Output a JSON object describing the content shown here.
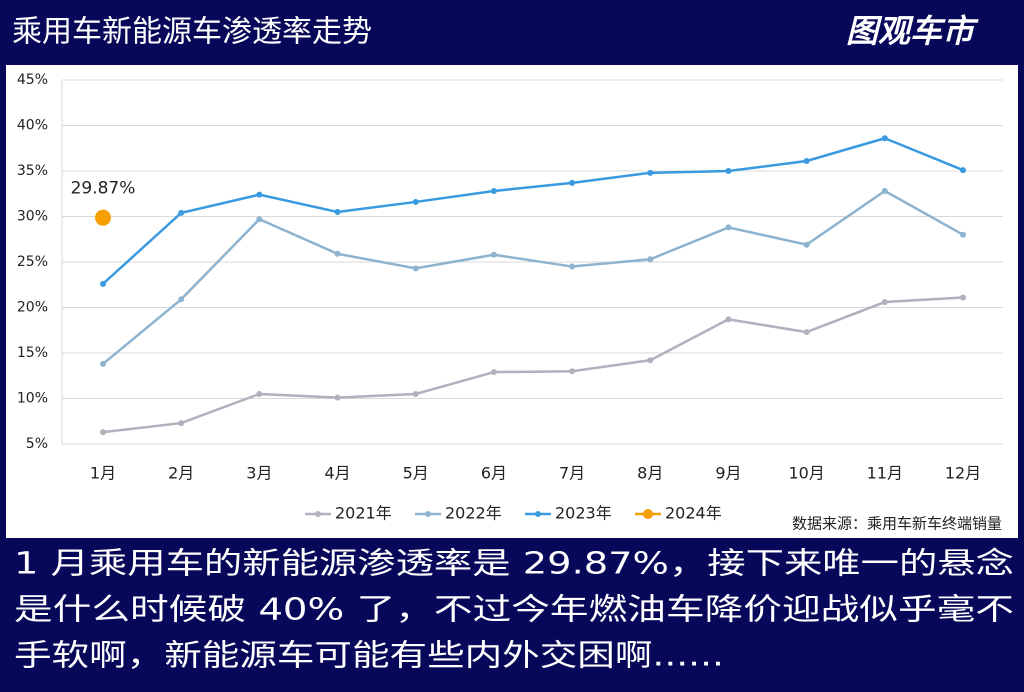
{
  "chart_data": {
    "type": "line",
    "title": "乘用车新能源车渗透率走势",
    "logo": "图观车市",
    "source": "数据来源：乘用车新车终端销量",
    "caption_lines": [
      "1 月乘用车的新能源渗透率是 29.87%，接下来唯一的悬念",
      "是什么时候破 40% 了，不过今年燃油车降价迎战似乎毫不",
      "手软啊，新能源车可能有些内外交困啊......"
    ],
    "categories": [
      "1月",
      "2月",
      "3月",
      "4月",
      "5月",
      "6月",
      "7月",
      "8月",
      "9月",
      "10月",
      "11月",
      "12月"
    ],
    "series": [
      {
        "name": "2021年",
        "color": "#b1b1bd",
        "values": [
          6.3,
          7.3,
          10.5,
          10.1,
          10.5,
          12.9,
          13.0,
          14.2,
          18.7,
          17.3,
          20.6,
          21.1
        ]
      },
      {
        "name": "2022年",
        "color": "#8db3cf",
        "values": [
          13.8,
          20.9,
          29.7,
          25.9,
          24.3,
          25.8,
          24.5,
          25.3,
          28.8,
          26.9,
          32.8,
          28.0
        ]
      },
      {
        "name": "2023年",
        "color": "#3a9ae0",
        "values": [
          22.6,
          30.4,
          32.4,
          30.5,
          31.6,
          32.8,
          33.7,
          34.8,
          35.0,
          36.1,
          38.6,
          35.1
        ]
      },
      {
        "name": "2024年",
        "color": "#f5a000",
        "values": [
          29.87,
          null,
          null,
          null,
          null,
          null,
          null,
          null,
          null,
          null,
          null,
          null
        ],
        "value_labels": [
          "29.87%",
          null,
          null,
          null,
          null,
          null,
          null,
          null,
          null,
          null,
          null,
          null
        ]
      }
    ],
    "ylim": [
      5,
      45
    ],
    "yticks": [
      {
        "value": 5,
        "label": "5%"
      },
      {
        "value": 10,
        "label": "10%"
      },
      {
        "value": 15,
        "label": "15%"
      },
      {
        "value": 20,
        "label": "20%"
      },
      {
        "value": 25,
        "label": "25%"
      },
      {
        "value": 30,
        "label": "30%"
      },
      {
        "value": 35,
        "label": "35%"
      },
      {
        "value": 40,
        "label": "40%"
      },
      {
        "value": 45,
        "label": "45%"
      }
    ],
    "grid": true,
    "legend": "bottom"
  }
}
